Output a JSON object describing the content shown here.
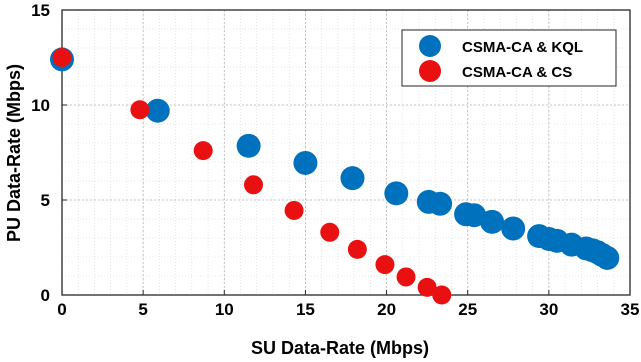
{
  "chart_data": {
    "type": "scatter",
    "xlabel": "SU Data-Rate (Mbps)",
    "ylabel": "PU Data-Rate (Mbps)",
    "xlim": [
      0,
      35
    ],
    "ylim": [
      0,
      15
    ],
    "xticks": [
      0,
      5,
      10,
      15,
      20,
      25,
      30,
      35
    ],
    "yticks": [
      0,
      5,
      10,
      15
    ],
    "grid": true,
    "legend_position": "top-right",
    "series": [
      {
        "name": "CSMA-CA & KQL",
        "color": "#0072BD",
        "points": [
          [
            0,
            12.4
          ],
          [
            5.9,
            9.7
          ],
          [
            11.5,
            7.85
          ],
          [
            15.0,
            6.95
          ],
          [
            17.9,
            6.15
          ],
          [
            20.6,
            5.35
          ],
          [
            22.6,
            4.9
          ],
          [
            23.3,
            4.8
          ],
          [
            24.9,
            4.25
          ],
          [
            25.4,
            4.2
          ],
          [
            26.5,
            3.85
          ],
          [
            27.8,
            3.5
          ],
          [
            29.4,
            3.1
          ],
          [
            30.0,
            2.95
          ],
          [
            30.5,
            2.85
          ],
          [
            31.4,
            2.65
          ],
          [
            32.3,
            2.45
          ],
          [
            32.7,
            2.35
          ],
          [
            33.0,
            2.25
          ],
          [
            33.3,
            2.1
          ],
          [
            33.6,
            1.95
          ]
        ]
      },
      {
        "name": "CSMA-CA & CS",
        "color": "#E81010",
        "points": [
          [
            0,
            12.5
          ],
          [
            4.8,
            9.75
          ],
          [
            8.7,
            7.6
          ],
          [
            11.8,
            5.8
          ],
          [
            14.3,
            4.45
          ],
          [
            16.5,
            3.3
          ],
          [
            18.2,
            2.4
          ],
          [
            19.9,
            1.6
          ],
          [
            21.2,
            0.95
          ],
          [
            22.5,
            0.4
          ],
          [
            23.4,
            0.0
          ]
        ]
      }
    ]
  }
}
